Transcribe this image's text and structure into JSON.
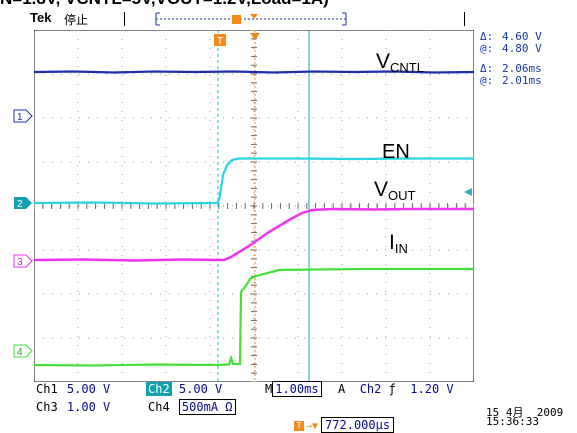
{
  "title": "N=1.8V, VCNTL=5V,VOUT=1.2V,Load=1A)",
  "header": {
    "brand": "Tek",
    "run_state": "停止"
  },
  "colors": {
    "ch1": "#1f2fb0",
    "ch2": "#29d3e0",
    "ch3": "#ee35ee",
    "ch4": "#45e03a",
    "marker": "#f28b1c",
    "cursor": "#18a8b8",
    "grid": "#9a9a9a"
  },
  "markers": {
    "trigger_icon": "T",
    "ch_icons": [
      "1",
      "2",
      "3",
      "4"
    ]
  },
  "trace_labels": {
    "vcntl": {
      "main": "V",
      "sub": "CNTL"
    },
    "en": {
      "main": "EN",
      "sub": ""
    },
    "vout": {
      "main": "V",
      "sub": "OUT"
    },
    "iin": {
      "main": "I",
      "sub": "IN"
    }
  },
  "cursor_readout": {
    "v_delta_sym": "Δ:",
    "v_delta": "4.60 V",
    "v_at_sym": "@:",
    "v_at": "4.80 V",
    "t_delta_sym": "Δ:",
    "t_delta": "2.06ms",
    "t_at_sym": "@:",
    "t_at": "2.01ms"
  },
  "bottom_panel": {
    "ch1_label": "Ch1",
    "ch1_scale": "5.00 V",
    "ch2_label": "Ch2",
    "ch2_scale": "5.00 V",
    "time_label": "M",
    "time_scale": "1.00ms",
    "acq_label": "A",
    "trig_source": "Ch2",
    "trig_slope": "ƒ",
    "trig_level": "1.20 V",
    "ch3_label": "Ch3",
    "ch3_scale": "1.00 V",
    "ch4_label": "Ch4",
    "ch4_scale": "500mA Ω",
    "trig_position": "772.000µs",
    "date": "15 4月  2009",
    "time": "15:36:33"
  }
}
